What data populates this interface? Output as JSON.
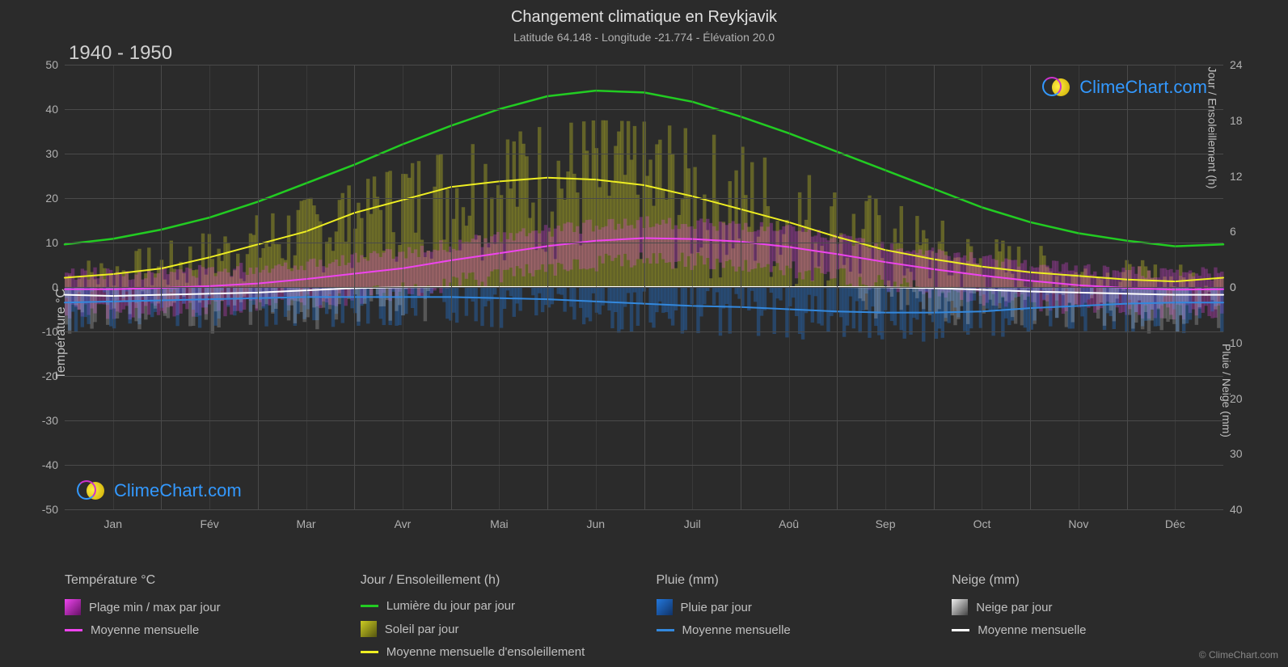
{
  "title": "Changement climatique en Reykjavik",
  "subtitle": "Latitude 64.148 - Longitude -21.774 - Élévation 20.0",
  "year_range": "1940 - 1950",
  "watermark_text": "ClimeChart.com",
  "copyright": "© ClimeChart.com",
  "background_color": "#2b2b2b",
  "grid_color": "#4a4a4a",
  "text_color": "#c0c0c0",
  "y_left": {
    "label": "Température °C",
    "min": -50,
    "max": 50,
    "ticks": [
      -50,
      -40,
      -30,
      -20,
      -10,
      0,
      10,
      20,
      30,
      40,
      50
    ]
  },
  "y_right_top": {
    "label": "Jour / Ensoleillement (h)",
    "ticks": [
      0,
      6,
      12,
      18,
      24
    ],
    "min": 0,
    "max": 24
  },
  "y_right_bottom": {
    "label": "Pluie / Neige (mm)",
    "ticks": [
      0,
      10,
      20,
      30,
      40
    ],
    "min": 0,
    "max": 40
  },
  "x_months": [
    "Jan",
    "Fév",
    "Mar",
    "Avr",
    "Mai",
    "Jun",
    "Juil",
    "Aoû",
    "Sep",
    "Oct",
    "Nov",
    "Déc"
  ],
  "series": {
    "daylight": {
      "color": "#22cc22",
      "width": 2.5,
      "values_h": [
        4.6,
        5.2,
        6.2,
        7.5,
        9.2,
        11.2,
        13.2,
        15.4,
        17.4,
        19.2,
        20.6,
        21.2,
        21.0,
        20.0,
        18.4,
        16.6,
        14.6,
        12.6,
        10.6,
        8.6,
        7.0,
        5.8,
        5.0,
        4.4,
        4.6
      ]
    },
    "sunshine_avg": {
      "color": "#eeee22",
      "width": 2,
      "values_h": [
        1.0,
        1.4,
        2.0,
        3.2,
        4.6,
        6.0,
        8.0,
        9.4,
        10.8,
        11.4,
        11.8,
        11.6,
        11.0,
        9.8,
        8.4,
        7.0,
        5.4,
        4.0,
        3.0,
        2.2,
        1.6,
        1.2,
        0.8,
        0.6,
        1.0
      ]
    },
    "temp_avg": {
      "color": "#ee44ee",
      "width": 2,
      "values_c": [
        -0.5,
        -0.5,
        -0.2,
        0.2,
        0.8,
        1.8,
        3.0,
        4.2,
        6.0,
        7.6,
        9.2,
        10.4,
        11.0,
        10.8,
        10.2,
        9.0,
        7.4,
        5.6,
        4.0,
        2.6,
        1.4,
        0.4,
        -0.2,
        -0.6,
        -0.5
      ]
    },
    "rain_avg": {
      "color": "#3388dd",
      "width": 2,
      "values_mm": [
        2.8,
        2.6,
        2.4,
        2.2,
        2.0,
        1.8,
        1.8,
        1.8,
        1.8,
        2.0,
        2.2,
        2.6,
        3.0,
        3.4,
        3.6,
        4.0,
        4.4,
        4.6,
        4.6,
        4.4,
        3.8,
        3.4,
        3.0,
        2.8,
        2.8
      ]
    },
    "snow_avg": {
      "color": "#ffffff",
      "width": 2,
      "values_mm": [
        1.4,
        1.6,
        1.4,
        1.2,
        1.0,
        0.6,
        0.2,
        0.05,
        0.0,
        0.0,
        0.0,
        0.0,
        0.0,
        0.0,
        0.0,
        0.0,
        0.0,
        0.05,
        0.2,
        0.5,
        0.8,
        1.0,
        1.2,
        1.4,
        1.4
      ]
    },
    "temp_range_bars": {
      "color": "#ee44ee",
      "opacity": 0.28
    },
    "sunshine_bars": {
      "color": "#cccc22",
      "opacity": 0.35
    },
    "rain_bars": {
      "color": "#2277dd",
      "opacity": 0.35
    },
    "snow_bars": {
      "color": "#dddddd",
      "opacity": 0.25
    }
  },
  "legend": {
    "col1": {
      "header": "Température °C",
      "items": [
        {
          "type": "swatch",
          "color_a": "#ee44ee",
          "color_b": "#661166",
          "label": "Plage min / max par jour"
        },
        {
          "type": "line",
          "color": "#ee44ee",
          "label": "Moyenne mensuelle"
        }
      ]
    },
    "col2": {
      "header": "Jour / Ensoleillement (h)",
      "items": [
        {
          "type": "line",
          "color": "#22cc22",
          "label": "Lumière du jour par jour"
        },
        {
          "type": "swatch",
          "color_a": "#cccc22",
          "color_b": "#555511",
          "label": "Soleil par jour"
        },
        {
          "type": "line",
          "color": "#eeee22",
          "label": "Moyenne mensuelle d'ensoleillement"
        }
      ]
    },
    "col3": {
      "header": "Pluie (mm)",
      "items": [
        {
          "type": "swatch",
          "color_a": "#2277dd",
          "color_b": "#113366",
          "label": "Pluie par jour"
        },
        {
          "type": "line",
          "color": "#3388dd",
          "label": "Moyenne mensuelle"
        }
      ]
    },
    "col4": {
      "header": "Neige (mm)",
      "items": [
        {
          "type": "swatch",
          "color_a": "#eeeeee",
          "color_b": "#444444",
          "label": "Neige par jour"
        },
        {
          "type": "line",
          "color": "#ffffff",
          "label": "Moyenne mensuelle"
        }
      ]
    }
  }
}
